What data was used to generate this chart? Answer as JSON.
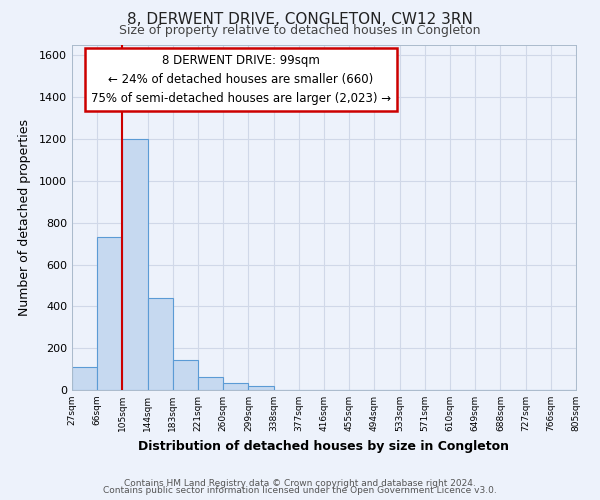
{
  "title": "8, DERWENT DRIVE, CONGLETON, CW12 3RN",
  "subtitle": "Size of property relative to detached houses in Congleton",
  "xlabel": "Distribution of detached houses by size in Congleton",
  "ylabel": "Number of detached properties",
  "footer_line1": "Contains HM Land Registry data © Crown copyright and database right 2024.",
  "footer_line2": "Contains public sector information licensed under the Open Government Licence v3.0.",
  "bin_labels": [
    "27sqm",
    "66sqm",
    "105sqm",
    "144sqm",
    "183sqm",
    "221sqm",
    "260sqm",
    "299sqm",
    "338sqm",
    "377sqm",
    "416sqm",
    "455sqm",
    "494sqm",
    "533sqm",
    "571sqm",
    "610sqm",
    "649sqm",
    "688sqm",
    "727sqm",
    "766sqm",
    "805sqm"
  ],
  "bar_values": [
    110,
    730,
    1200,
    440,
    145,
    60,
    35,
    20,
    0,
    0,
    0,
    0,
    0,
    0,
    0,
    0,
    0,
    0,
    0,
    0
  ],
  "bar_color": "#c6d9f0",
  "bar_edge_color": "#5b9bd5",
  "grid_color": "#d0d8e8",
  "background_color": "#edf2fb",
  "annotation_box_edge_color": "#cc0000",
  "red_line_x": 2,
  "ylim": [
    0,
    1650
  ],
  "yticks": [
    0,
    200,
    400,
    600,
    800,
    1000,
    1200,
    1400,
    1600
  ],
  "property_sqm": "99sqm",
  "pct_smaller": 24,
  "n_smaller": 660,
  "pct_semi_larger": 75,
  "n_semi_larger": 2023,
  "title_fontsize": 11,
  "subtitle_fontsize": 9,
  "xlabel_fontsize": 9,
  "ylabel_fontsize": 9,
  "footer_fontsize": 6.5,
  "ann_fontsize": 8.5
}
